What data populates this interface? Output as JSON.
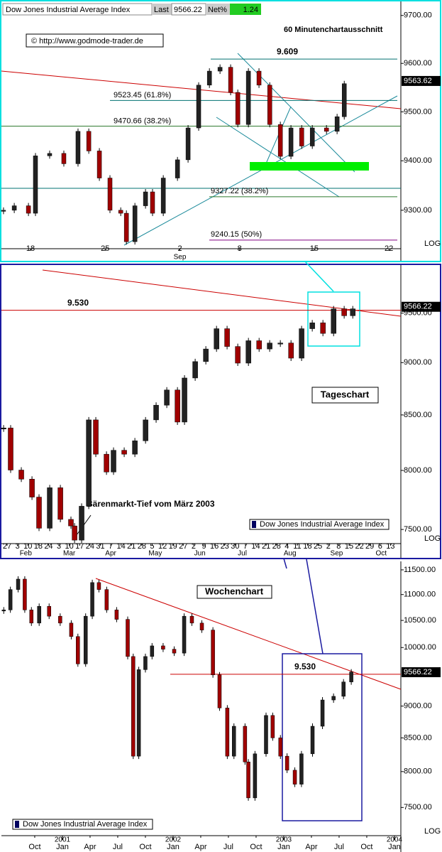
{
  "chart_data": [
    {
      "type": "candlestick",
      "log": true,
      "axis_note": "LOG",
      "header": {
        "title": "Dow Jones Industrial Average Index",
        "last_label": "Last",
        "last": 9566.22,
        "net_label": "Net%",
        "net": 1.24
      },
      "watermark": "© http://www.godmode-trader.de",
      "subtitle": "60 Minutenchartausschnitt",
      "ylim": [
        9223,
        9725
      ],
      "yticks": [
        {
          "value": 9300,
          "label": "9300.00"
        },
        {
          "value": 9400,
          "label": "9400.00"
        },
        {
          "value": 9500,
          "label": "9500.00"
        },
        {
          "value": 9600,
          "label": "9600.00"
        },
        {
          "value": 9700,
          "label": "9700.00"
        }
      ],
      "xlim": [
        -1.95,
        24.8
      ],
      "xticks": [
        {
          "value": 0,
          "label": "18"
        },
        {
          "value": 5,
          "label": "25"
        },
        {
          "value": 10,
          "label": "2"
        },
        {
          "value": 14,
          "label": "8"
        },
        {
          "value": 19,
          "label": "15"
        },
        {
          "value": 24,
          "label": "22"
        }
      ],
      "months": [
        {
          "value": 10,
          "label": "Sep"
        }
      ],
      "x": [
        -1.81,
        -1.09,
        -0.14,
        0.33,
        1.28,
        2.23,
        3.18,
        3.9,
        4.61,
        5.32,
        6.04,
        6.42,
        6.99,
        7.7,
        8.17,
        8.89,
        9.84,
        10.55,
        11.26,
        11.98,
        12.69,
        13.4,
        13.88,
        14.59,
        15.3,
        16.02,
        16.73,
        17.44,
        18.16,
        18.87,
        19.82,
        20.53,
        21.01
      ],
      "values": [
        9300,
        9309,
        9294,
        9410,
        9415,
        9394,
        9460,
        9420,
        9365,
        9300,
        9294,
        9237,
        9309,
        9337,
        9294,
        9365,
        9402,
        9467,
        9555,
        9584,
        9592,
        9540,
        9474,
        9584,
        9555,
        9474,
        9409,
        9467,
        9430,
        9467,
        9460,
        9490,
        9558
      ],
      "levels": [
        {
          "value": 9609,
          "label": "9.609",
          "color": "#007070"
        },
        {
          "value": 9523.45,
          "label": "9523.45 (61.8%)",
          "color": "#007070"
        },
        {
          "value": 9470.66,
          "label": "9470.66 (38.2%)",
          "color": "#2f7a2f"
        },
        {
          "value": 9327.22,
          "label": "9327.22 (38.2%)",
          "color": "#2f7a2f"
        },
        {
          "value": 9240.15,
          "label": "9240.15 (50%)",
          "color": "#800080"
        }
      ],
      "last_price": 9563.62
    },
    {
      "type": "candlestick",
      "log": true,
      "axis_note": "LOG",
      "title": "Tageschart",
      "annotation": "Bärenmarkt-Tief vom März 2003",
      "legend": "Dow Jones Industrial Average Index",
      "ylim": [
        7385,
        9997
      ],
      "yticks": [
        {
          "value": 7500,
          "label": "7500.00"
        },
        {
          "value": 8000,
          "label": "8000.00"
        },
        {
          "value": 8500,
          "label": "8500.00"
        },
        {
          "value": 9000,
          "label": "9000.00"
        },
        {
          "value": 9500,
          "label": "9500.00"
        }
      ],
      "xlim": [
        -0.55,
        38
      ],
      "xticks": [
        {
          "value": 0,
          "label": "27"
        },
        {
          "value": 1,
          "label": "3"
        },
        {
          "value": 2,
          "label": "10"
        },
        {
          "value": 3,
          "label": "18"
        },
        {
          "value": 4,
          "label": "24"
        },
        {
          "value": 5,
          "label": "3"
        },
        {
          "value": 6,
          "label": "10"
        },
        {
          "value": 7,
          "label": "17"
        },
        {
          "value": 8,
          "label": "24"
        },
        {
          "value": 9,
          "label": "31"
        },
        {
          "value": 10,
          "label": "7"
        },
        {
          "value": 11,
          "label": "14"
        },
        {
          "value": 12,
          "label": "21"
        },
        {
          "value": 13,
          "label": "28"
        },
        {
          "value": 14,
          "label": "5"
        },
        {
          "value": 15,
          "label": "12"
        },
        {
          "value": 16,
          "label": "19"
        },
        {
          "value": 17,
          "label": "27"
        },
        {
          "value": 18,
          "label": "2"
        },
        {
          "value": 19,
          "label": "9"
        },
        {
          "value": 20,
          "label": "16"
        },
        {
          "value": 21,
          "label": "23"
        },
        {
          "value": 22,
          "label": "30"
        },
        {
          "value": 23,
          "label": "7"
        },
        {
          "value": 24,
          "label": "14"
        },
        {
          "value": 25,
          "label": "21"
        },
        {
          "value": 26,
          "label": "28"
        },
        {
          "value": 27,
          "label": "4"
        },
        {
          "value": 28,
          "label": "11"
        },
        {
          "value": 29,
          "label": "18"
        },
        {
          "value": 30,
          "label": "25"
        },
        {
          "value": 31,
          "label": "2"
        },
        {
          "value": 32,
          "label": "8"
        },
        {
          "value": 33,
          "label": "15"
        },
        {
          "value": 34,
          "label": "22"
        },
        {
          "value": 35,
          "label": "29"
        },
        {
          "value": 36,
          "label": "6"
        },
        {
          "value": 37,
          "label": "13"
        }
      ],
      "months": [
        {
          "value": 1.8,
          "label": "Feb"
        },
        {
          "value": 6,
          "label": "Mar"
        },
        {
          "value": 10,
          "label": "Apr"
        },
        {
          "value": 14.3,
          "label": "May"
        },
        {
          "value": 18.6,
          "label": "Jun"
        },
        {
          "value": 22.7,
          "label": "Jul"
        },
        {
          "value": 27.3,
          "label": "Aug"
        },
        {
          "value": 31.8,
          "label": "Sep"
        },
        {
          "value": 36.1,
          "label": "Oct"
        }
      ],
      "x": [
        -0.34,
        0.34,
        1.37,
        2.4,
        3.08,
        4.11,
        5.14,
        6.16,
        6.51,
        7.19,
        7.88,
        8.56,
        9.59,
        10.27,
        11.3,
        12.33,
        13.36,
        14.38,
        15.41,
        16.44,
        17.12,
        18.15,
        19.18,
        20.21,
        21.23,
        22.26,
        23.29,
        24.32,
        25.34,
        26.37,
        27.4,
        28.42,
        29.45,
        30.48,
        31.51,
        32.53,
        33.36
      ],
      "values": [
        8380,
        8003,
        7924,
        7770,
        7510,
        7850,
        7583,
        7529,
        7413,
        7693,
        8454,
        8143,
        7986,
        8178,
        8143,
        8263,
        8454,
        8591,
        8735,
        8434,
        8850,
        9010,
        9135,
        9340,
        9160,
        8995,
        9218,
        9135,
        9195,
        9195,
        9044,
        9340,
        9400,
        9292,
        9545,
        9473,
        9545
      ],
      "levels": [
        {
          "value": 9530,
          "label": "9.530",
          "color": "#cc0000"
        }
      ],
      "last_price": 9566.22
    },
    {
      "type": "candlestick",
      "log": true,
      "axis_note": "LOG",
      "title": "Wochenchart",
      "legend": "Dow Jones Industrial Average Index",
      "ylim": [
        7129,
        11647
      ],
      "yticks": [
        {
          "value": 7500,
          "label": "7500.00"
        },
        {
          "value": 8000,
          "label": "8000.00"
        },
        {
          "value": 8500,
          "label": "8500.00"
        },
        {
          "value": 9000,
          "label": "9000.00"
        },
        {
          "value": 10000,
          "label": "10000.00"
        },
        {
          "value": 10500,
          "label": "10500.00"
        },
        {
          "value": 11000,
          "label": "11000.00"
        },
        {
          "value": 11500,
          "label": "11500.00"
        }
      ],
      "xlim": [
        2000.449,
        2004.058
      ],
      "xticks": [
        {
          "value": 2000.75,
          "label": "Oct"
        },
        {
          "value": 2001,
          "label": "Jan"
        },
        {
          "value": 2001.25,
          "label": "Apr"
        },
        {
          "value": 2001.5,
          "label": "Jul"
        },
        {
          "value": 2001.75,
          "label": "Oct"
        },
        {
          "value": 2002,
          "label": "Jan"
        },
        {
          "value": 2002.25,
          "label": "Apr"
        },
        {
          "value": 2002.5,
          "label": "Jul"
        },
        {
          "value": 2002.75,
          "label": "Oct"
        },
        {
          "value": 2003,
          "label": "Jan"
        },
        {
          "value": 2003.25,
          "label": "Apr"
        },
        {
          "value": 2003.5,
          "label": "Jul"
        },
        {
          "value": 2003.75,
          "label": "Oct"
        },
        {
          "value": 2004,
          "label": "Jan"
        }
      ],
      "years": [
        {
          "value": 2001,
          "label": "2001"
        },
        {
          "value": 2002,
          "label": "2002"
        },
        {
          "value": 2003,
          "label": "2003"
        },
        {
          "value": 2004,
          "label": "2004"
        }
      ],
      "x": [
        2000.47,
        2000.53,
        2000.6,
        2000.66,
        2000.72,
        2000.79,
        2000.88,
        2000.98,
        2001.08,
        2001.14,
        2001.21,
        2001.27,
        2001.33,
        2001.4,
        2001.49,
        2001.59,
        2001.64,
        2001.69,
        2001.75,
        2001.81,
        2001.91,
        2002.01,
        2002.1,
        2002.17,
        2002.26,
        2002.36,
        2002.42,
        2002.49,
        2002.55,
        2002.65,
        2002.68,
        2002.74,
        2002.84,
        2002.9,
        2002.97,
        2003.03,
        2003.1,
        2003.16,
        2003.26,
        2003.35,
        2003.45,
        2003.54,
        2003.61
      ],
      "values": [
        10700,
        11100,
        11310,
        10700,
        10450,
        10770,
        10580,
        10450,
        10200,
        9710,
        10580,
        11240,
        11100,
        10700,
        10520,
        9840,
        8225,
        9610,
        9840,
        10030,
        9970,
        9900,
        10580,
        10450,
        10320,
        9520,
        8970,
        8225,
        8680,
        8140,
        7630,
        8260,
        8850,
        8500,
        8225,
        8020,
        7820,
        8260,
        8680,
        9100,
        9160,
        9400,
        9570
      ],
      "levels": [
        {
          "value": 9530,
          "label": "9.530",
          "color": "#cc0000"
        }
      ],
      "last_price": 9566.22
    }
  ]
}
